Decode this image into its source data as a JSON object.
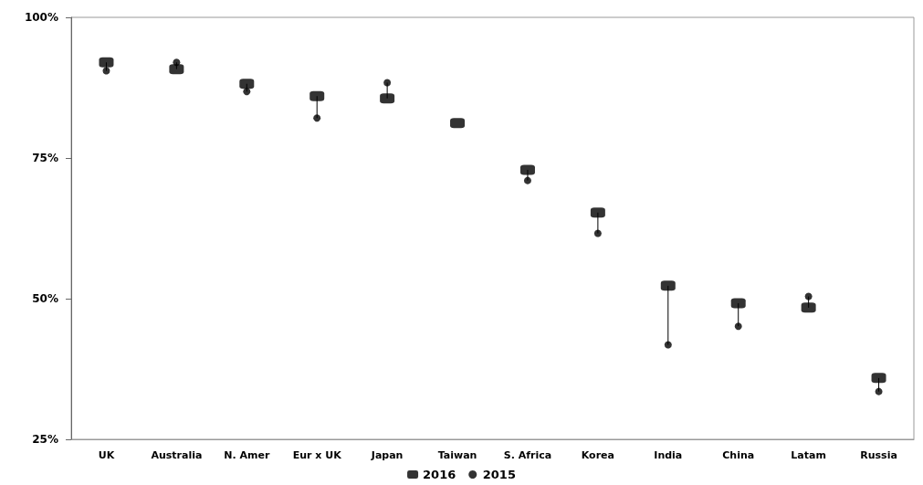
{
  "chart_data": {
    "type": "scatter",
    "categories": [
      "UK",
      "Australia",
      "N. Amer",
      "Eur x UK",
      "Japan",
      "Taiwan",
      "S. Africa",
      "Korea",
      "India",
      "China",
      "Latam",
      "Russia"
    ],
    "series": [
      {
        "name": "2016",
        "color": "#000000",
        "marker": "square",
        "values": [
          92.0,
          90.8,
          88.2,
          86.0,
          85.6,
          81.2,
          72.9,
          65.3,
          52.3,
          49.2,
          48.4,
          35.9
        ]
      },
      {
        "name": "2015",
        "color": "#000000",
        "marker": "circle",
        "values": [
          90.5,
          92.0,
          86.8,
          82.1,
          88.4,
          null,
          71.0,
          61.6,
          41.8,
          45.1,
          50.4,
          33.5
        ]
      }
    ],
    "ylim": [
      25,
      100
    ],
    "yticks": [
      {
        "value": 25,
        "label": "25%"
      },
      {
        "value": 50,
        "label": "50%"
      },
      {
        "value": 75,
        "label": "75%"
      },
      {
        "value": 100,
        "label": "100%"
      }
    ],
    "grid": false,
    "legend": "bottom"
  }
}
